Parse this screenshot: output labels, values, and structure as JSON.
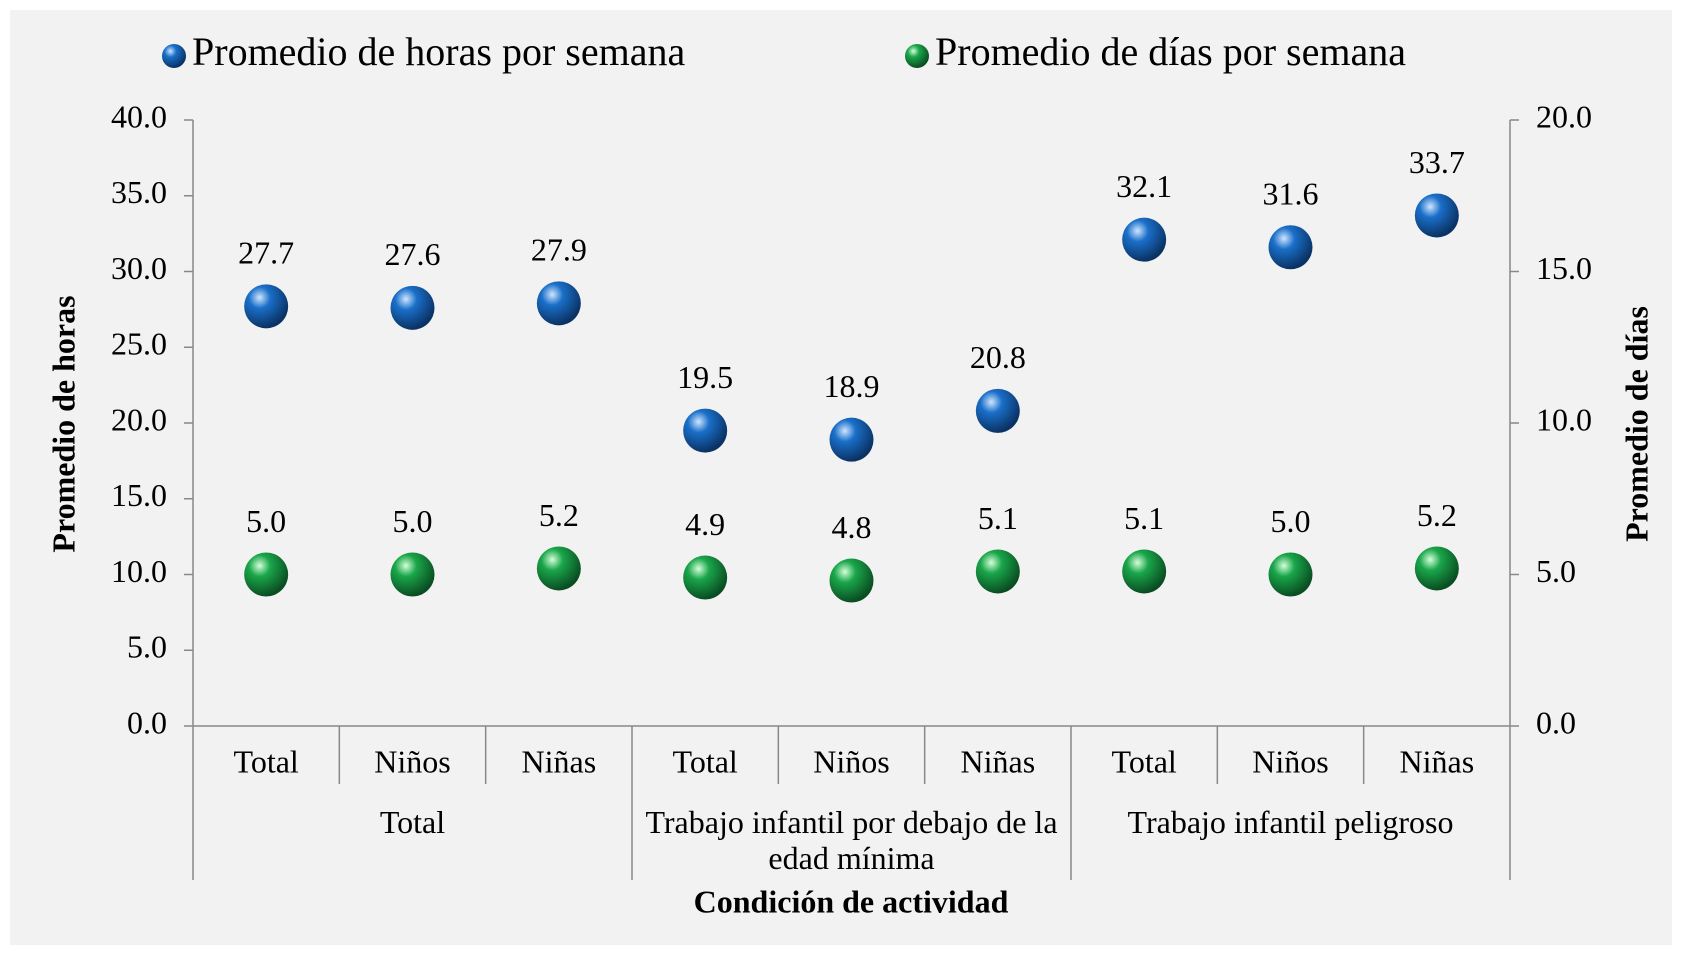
{
  "chart_data": {
    "type": "scatter",
    "x_label": "Condición de actividad",
    "y_label": "Promedio de horas",
    "y2_label": "Promedio de días",
    "categories": [
      "Total",
      "Niños",
      "Niñas",
      "Total",
      "Niños",
      "Niñas",
      "Total",
      "Niños",
      "Niñas"
    ],
    "group_categories": [
      "Total",
      "Trabajo infantil por debajo de la edad mínima",
      "Trabajo infantil peligroso"
    ],
    "series": [
      {
        "name": "Promedio de horas por semana",
        "color": "#1a6fc9",
        "axis": "y",
        "values": [
          27.7,
          27.6,
          27.9,
          19.5,
          18.9,
          20.8,
          32.1,
          31.6,
          33.7
        ]
      },
      {
        "name": "Promedio de días por semana",
        "color": "#1aa64a",
        "axis": "y2",
        "values": [
          5,
          5,
          5.2,
          4.9,
          4.8,
          5.1,
          5.1,
          5,
          5.2
        ],
        "value_labels": [
          "5.0",
          "5.0",
          "5.2",
          "4.9",
          "4.8",
          "5.1",
          "5.1",
          "5.0",
          "5.2"
        ]
      }
    ],
    "ylim": [
      0,
      40
    ],
    "yticks": [
      {
        "value": 0,
        "label": "0.0"
      },
      {
        "value": 5,
        "label": "5.0"
      },
      {
        "value": 10,
        "label": "10.0"
      },
      {
        "value": 15,
        "label": "15.0"
      },
      {
        "value": 20,
        "label": "20.0"
      },
      {
        "value": 25,
        "label": "25.0"
      },
      {
        "value": 30,
        "label": "30.0"
      },
      {
        "value": 35,
        "label": "35.0"
      },
      {
        "value": 40,
        "label": "40.0"
      }
    ],
    "y2lim": [
      0,
      20
    ],
    "y2ticks": [
      {
        "value": 0,
        "label": "0.0"
      },
      {
        "value": 5,
        "label": "5.0"
      },
      {
        "value": 10,
        "label": "10.0"
      },
      {
        "value": 15,
        "label": "15.0"
      },
      {
        "value": 20,
        "label": "20.0"
      }
    ],
    "legend": "top"
  }
}
